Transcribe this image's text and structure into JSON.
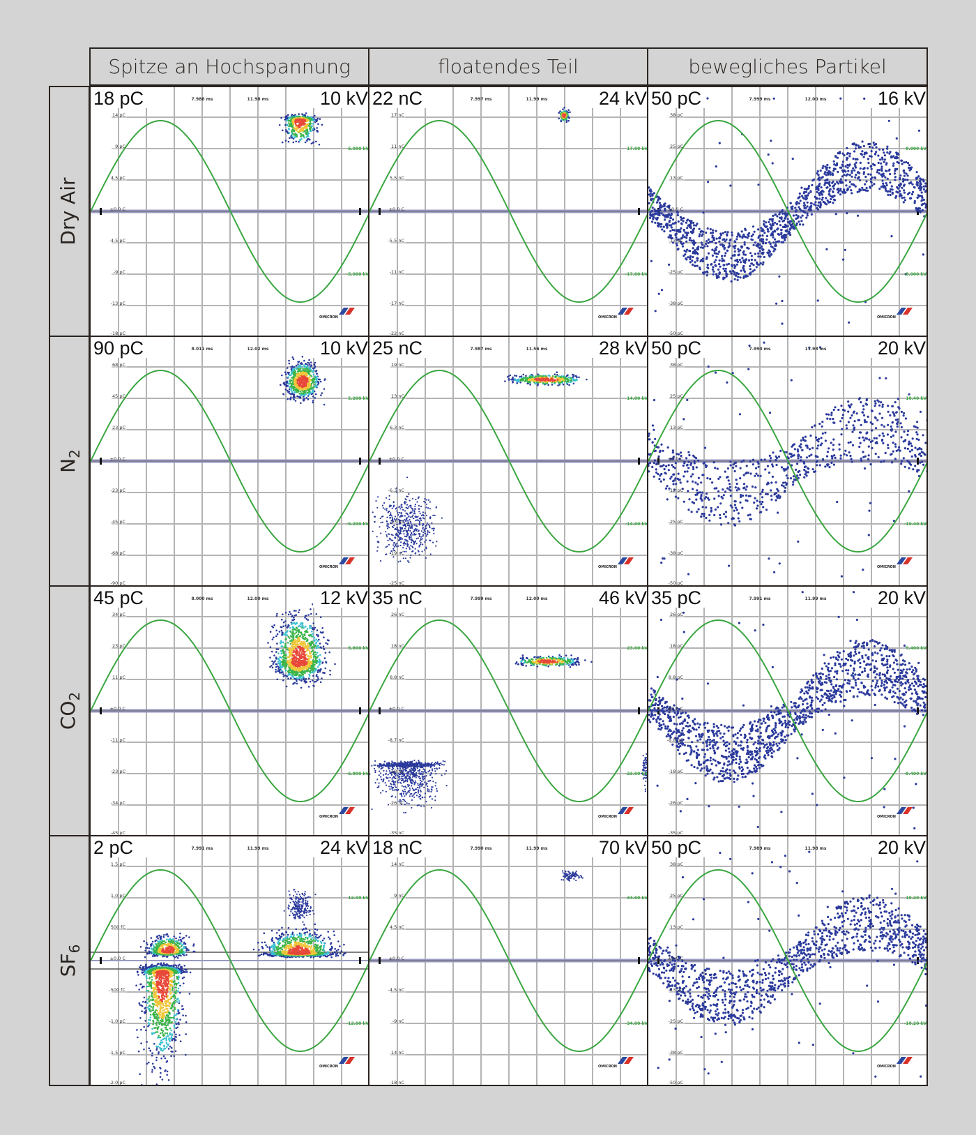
{
  "columns": [
    "Spitze an Hochspannung",
    "floatendes Teil",
    "bewegliches Partikel"
  ],
  "rows": [
    {
      "label": "Dry Air",
      "sub": ""
    },
    {
      "label": "N",
      "sub": "2"
    },
    {
      "label": "CO",
      "sub": "2"
    },
    {
      "label": "SF",
      "sub": "6"
    }
  ],
  "logo_text": "OMICRON",
  "colors": {
    "sine": "#3aa640",
    "points": "#2b3a9c",
    "grid": "#b4b4b4",
    "zero_line": "#9a9ac4",
    "axis_label_green": "#3aa640"
  },
  "chart_data": {
    "type": "scatter",
    "grid": true,
    "panels": [
      {
        "row": 0,
        "col": 0,
        "charge_label": "18 pC",
        "voltage_label": "10 kV",
        "charge_max": 18,
        "time_labels": [
          "7.988 ms",
          "11.98 ms"
        ],
        "yticks": [
          "14 pC",
          "9 pC",
          "4.5 pC",
          "±0.0 C",
          "-4.5 pC",
          "-9 pC",
          "-13 pC",
          "-18 pC"
        ],
        "voltage_ticks": [
          "5.000 kV",
          "-5.000 kV"
        ],
        "clusters": [
          {
            "phase": [
              244,
              296
            ],
            "charge": [
              9,
              14
            ],
            "core": 13,
            "n": 500,
            "heat": true
          }
        ]
      },
      {
        "row": 0,
        "col": 1,
        "charge_label": "22 nC",
        "voltage_label": "24 kV",
        "charge_max": 22,
        "time_labels": [
          "7.997 ms",
          "11.99 ms"
        ],
        "yticks": [
          "17 nC",
          "11 nC",
          "5.5 nC",
          "±0.0 C",
          "-5.5 nC",
          "-11 nC",
          "-17 nC",
          "-22 nC"
        ],
        "voltage_ticks": [
          "17.00 kV",
          "-17.00 kV"
        ],
        "clusters": [
          {
            "phase": [
              243,
              258
            ],
            "charge": [
              15.5,
              18
            ],
            "core": 16.8,
            "n": 120,
            "heat": true
          }
        ]
      },
      {
        "row": 0,
        "col": 2,
        "charge_label": "50 pC",
        "voltage_label": "16 kV",
        "charge_max": 50,
        "time_labels": [
          "7.999 ms",
          "12.00 ms"
        ],
        "yticks": [
          "38 pC",
          "25 pC",
          "13 pC",
          "±0.0 C",
          "-13 pC",
          "-25 pC",
          "-38 pC",
          "-50 pC"
        ],
        "voltage_ticks": [
          "8.000 kV",
          "-8.000 kV"
        ],
        "particle": {
          "amplitude": 18,
          "spread": 10,
          "n": 1300,
          "outliers": 60
        }
      },
      {
        "row": 1,
        "col": 0,
        "charge_label": "90 pC",
        "voltage_label": "10 kV",
        "charge_max": 90,
        "time_labels": [
          "8.011 ms",
          "12.02 ms"
        ],
        "yticks": [
          "68 pC",
          "45 pC",
          "23 pC",
          "±0.0 C",
          "-23 pC",
          "-45 pC",
          "-68 pC",
          "-90 pC"
        ],
        "voltage_ticks": [
          "5.200 kV",
          "-5.200 kV"
        ],
        "clusters": [
          {
            "phase": [
              246,
              300
            ],
            "charge": [
              42,
              74
            ],
            "core": 57,
            "n": 700,
            "heat": true
          }
        ]
      },
      {
        "row": 1,
        "col": 1,
        "charge_label": "25 nC",
        "voltage_label": "28 kV",
        "charge_max": 25,
        "time_labels": [
          "7.987 ms",
          "11.56 ms"
        ],
        "yticks": [
          "19 nC",
          "13 nC",
          "6.3 nC",
          "±0.0 C",
          "-6.3 nC",
          "-13 nC",
          "-19 nC",
          "-25 nC"
        ],
        "voltage_ticks": [
          "14.00 kV",
          "-14.00 kV"
        ],
        "clusters": [
          {
            "phase": [
              170,
              285
            ],
            "charge": [
              15,
              17.5
            ],
            "core": 16.2,
            "n": 350,
            "heat": true
          },
          {
            "phase": [
              0,
              95
            ],
            "charge": [
              -21,
              -5
            ],
            "core": -13,
            "n": 500,
            "heat": false
          }
        ]
      },
      {
        "row": 1,
        "col": 2,
        "charge_label": "50 pC",
        "voltage_label": "20 kV",
        "charge_max": 50,
        "time_labels": [
          "7.990 ms",
          "11.98 ms"
        ],
        "yticks": [
          "38 pC",
          "25 pC",
          "13 pC",
          "±0.0 C",
          "-12 pC",
          "-25 pC",
          "-38 pC",
          "-50 pC"
        ],
        "voltage_ticks": [
          "10.40 kV",
          "-10.40 kV"
        ],
        "particle": {
          "amplitude": 13,
          "spread": 13,
          "n": 700,
          "outliers": 70
        }
      },
      {
        "row": 2,
        "col": 0,
        "charge_label": "45 pC",
        "voltage_label": "12 kV",
        "charge_max": 45,
        "time_labels": [
          "8.000 ms",
          "12.00 ms"
        ],
        "yticks": [
          "34 pC",
          "23 pC",
          "11 pC",
          "±0.0 C",
          "-11 pC",
          "-23 pC",
          "-34 pC",
          "-45 pC"
        ],
        "voltage_ticks": [
          "5.800 kV",
          "-5.800 kV"
        ],
        "clusters": [
          {
            "phase": [
              230,
              308
            ],
            "charge": [
              9,
              38
            ],
            "core": 18,
            "n": 1100,
            "heat": true
          }
        ]
      },
      {
        "row": 2,
        "col": 1,
        "charge_label": "35 nC",
        "voltage_label": "46 kV",
        "charge_max": 35,
        "time_labels": [
          "7.999 ms",
          "12.00 ms"
        ],
        "yticks": [
          "26 nC",
          "18 nC",
          "8.8 nC",
          "±0.0 C",
          "-8.7 nC",
          "-18 nC",
          "-26 nC",
          "-35 nC"
        ],
        "voltage_ticks": [
          "23.00 kV",
          "-23.00 kV"
        ],
        "clusters": [
          {
            "phase": [
              180,
              280
            ],
            "charge": [
              12,
              15.5
            ],
            "core": 13.8,
            "n": 300,
            "heat": true
          },
          {
            "phase": [
              0,
              100
            ],
            "charge": [
              -28,
              -14
            ],
            "core": -15.5,
            "n": 900,
            "heat": false
          },
          {
            "phase": [
              350,
              360
            ],
            "charge": [
              -22,
              -12
            ],
            "core": -16,
            "n": 60,
            "heat": false
          }
        ]
      },
      {
        "row": 2,
        "col": 2,
        "charge_label": "35 pC",
        "voltage_label": "20 kV",
        "charge_max": 35,
        "time_labels": [
          "7.991 ms",
          "11.99 ms"
        ],
        "yticks": [
          "26 pC",
          "18 pC",
          "8.8 pC",
          "±0.0 C",
          "-8.8 pC",
          "-18 pC",
          "-26 pC",
          "-35 pC"
        ],
        "voltage_ticks": [
          "9.400 kV",
          "-9.400 kV"
        ],
        "particle": {
          "amplitude": 12,
          "spread": 8,
          "n": 1300,
          "outliers": 70
        }
      },
      {
        "row": 3,
        "col": 0,
        "charge_label": "2 pC",
        "voltage_label": "24 kV",
        "charge_max": 2,
        "time_labels": [
          "7.991 ms",
          "11.99 ms"
        ],
        "yticks": [
          "1.5 pC",
          "1.0 pC",
          "500 fC",
          "±0.0 C",
          "-500 fC",
          "-1.0 pC",
          "-1.5 pC",
          "-2.0 pC"
        ],
        "voltage_ticks": [
          "12.00 kV",
          "-12.00 kV"
        ],
        "clusters": [
          {
            "phase": [
              68,
              132
            ],
            "charge": [
              0.05,
              0.45
            ],
            "core": 0.15,
            "n": 500,
            "heat": true
          },
          {
            "phase": [
              60,
              125
            ],
            "charge": [
              -1.95,
              -0.05
            ],
            "core": -0.2,
            "n": 1600,
            "heat": true
          },
          {
            "phase": [
              215,
              322
            ],
            "charge": [
              0.05,
              0.55
            ],
            "core": 0.12,
            "n": 1100,
            "heat": true
          },
          {
            "phase": [
              248,
              290
            ],
            "charge": [
              0.6,
              1.15
            ],
            "core": 0.85,
            "n": 200,
            "heat": false
          }
        ]
      },
      {
        "row": 3,
        "col": 1,
        "charge_label": "18 nC",
        "voltage_label": "70 kV",
        "charge_max": 18,
        "time_labels": [
          "7.990 ms",
          "11.99 ms"
        ],
        "yticks": [
          "14 nC",
          "9 nC",
          "4.5 nC",
          "±0.0 C",
          "-4.5 nC",
          "-9 nC",
          "-14 nC",
          "-18 nC"
        ],
        "voltage_ticks": [
          "34.00 kV",
          "-34.00 kV"
        ],
        "clusters": [
          {
            "phase": [
              243,
              275
            ],
            "charge": [
              11.3,
              13.3
            ],
            "core": 12.3,
            "n": 90,
            "heat": false
          }
        ]
      },
      {
        "row": 3,
        "col": 2,
        "charge_label": "50 pC",
        "voltage_label": "20 kV",
        "charge_max": 50,
        "time_labels": [
          "7.989 ms",
          "11.98 ms"
        ],
        "yticks": [
          "38 pC",
          "25 pC",
          "13 pC",
          "±0.0 C",
          "-13 pC",
          "-25 pC",
          "-38 pC",
          "-50 pC"
        ],
        "voltage_ticks": [
          "10.20 kV",
          "-10.20 kV"
        ],
        "particle": {
          "amplitude": 15,
          "spread": 11,
          "n": 1100,
          "outliers": 70
        }
      }
    ]
  }
}
